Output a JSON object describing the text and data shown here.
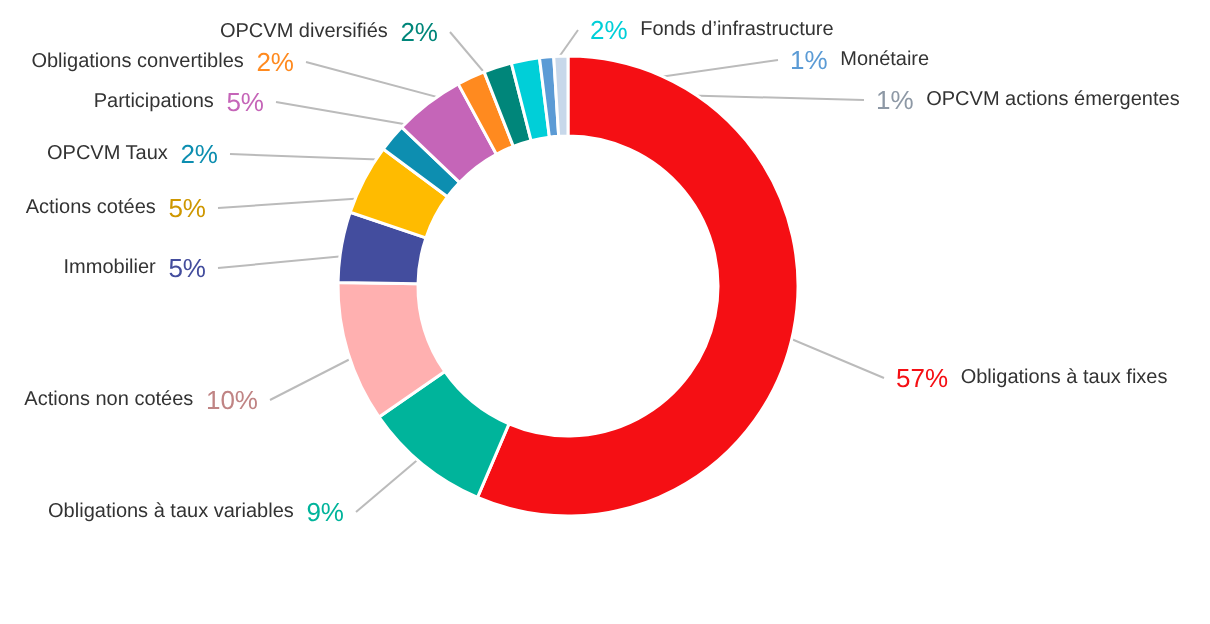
{
  "chart_data": {
    "type": "donut",
    "categories": [
      "Obligations à taux fixes",
      "Obligations à taux variables",
      "Actions non cotées",
      "Immobilier",
      "Actions cotées",
      "OPCVM Taux",
      "Participations",
      "Obligations convertibles",
      "OPCVM diversifiés",
      "Fonds d’infrastructure",
      "Monétaire",
      "OPCVM actions émergentes"
    ],
    "values": [
      57,
      9,
      10,
      5,
      5,
      2,
      5,
      2,
      2,
      2,
      1,
      1
    ],
    "value_labels": [
      "57%",
      "9%",
      "10%",
      "5%",
      "5%",
      "2%",
      "5%",
      "2%",
      "2%",
      "2%",
      "1%",
      "1%"
    ],
    "colors": [
      "#f50f14",
      "#00b49b",
      "#ffb0b0",
      "#434d9e",
      "#ffbb00",
      "#0d8eb0",
      "#c565b8",
      "#ff8a1f",
      "#00867a",
      "#00cfd8",
      "#5b9bd5",
      "#c8d8ea"
    ],
    "legend": false
  }
}
